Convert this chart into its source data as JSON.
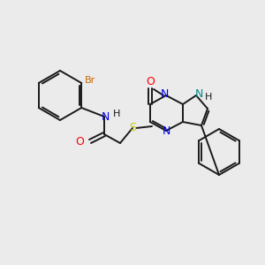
{
  "background_color": "#ebebeb",
  "bond_color": "#1a1a1a",
  "atom_colors": {
    "N": "#0000ee",
    "O": "#ff0000",
    "S": "#cccc00",
    "Br": "#cc6600",
    "NH_amide": "#0000ee",
    "NH_pyrrole": "#008888",
    "C": "#1a1a1a"
  },
  "figsize": [
    3.0,
    3.0
  ],
  "dpi": 100
}
